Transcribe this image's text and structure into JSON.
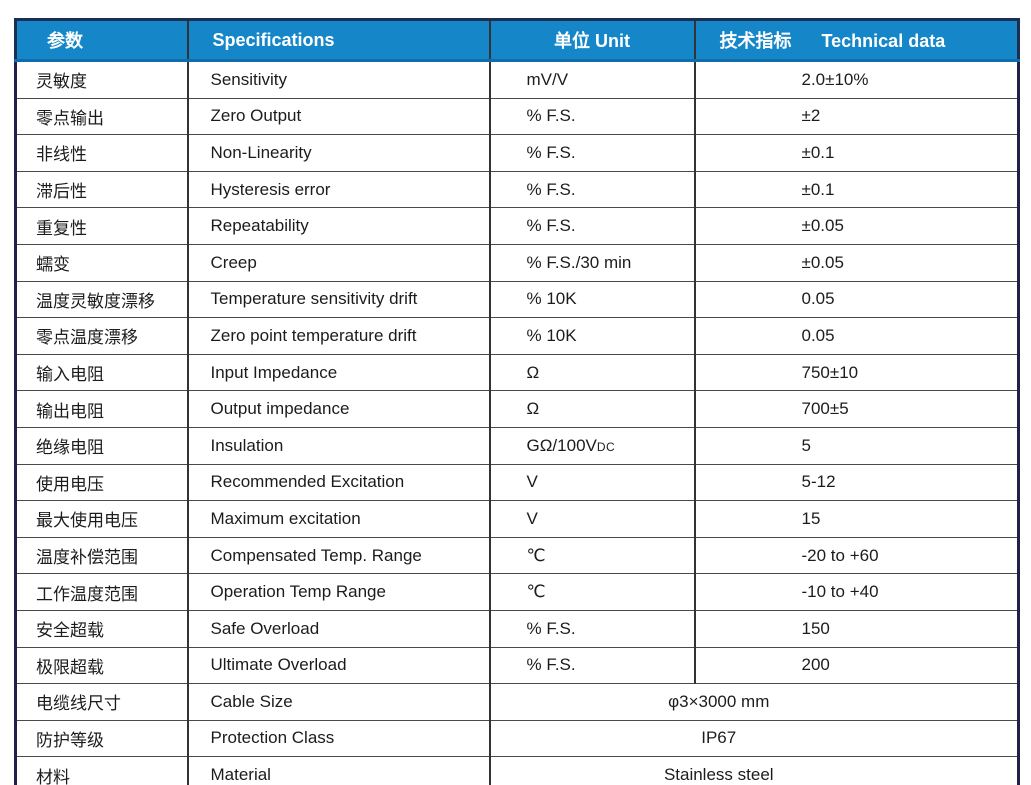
{
  "accent_color": "#1587C8",
  "grid_color": "#333333",
  "table": {
    "header": {
      "param": "参数",
      "specifications": "Specifications",
      "unit": "单位 Unit",
      "technical_cn": "技术指标",
      "technical_en": "Technical data"
    },
    "rows": [
      {
        "param": "灵敏度",
        "spec": "Sensitivity",
        "unit": "mV/V",
        "unit_suffix": "",
        "value": "2.0±10%",
        "merged": false
      },
      {
        "param": "零点输出",
        "spec": "Zero Output",
        "unit": "% F.S.",
        "unit_suffix": "",
        "value": "±2",
        "merged": false
      },
      {
        "param": "非线性",
        "spec": "Non-Linearity",
        "unit": "% F.S.",
        "unit_suffix": "",
        "value": "±0.1",
        "merged": false
      },
      {
        "param": "滞后性",
        "spec": "Hysteresis error",
        "unit": "% F.S.",
        "unit_suffix": "",
        "value": "±0.1",
        "merged": false
      },
      {
        "param": "重复性",
        "spec": "Repeatability",
        "unit": "% F.S.",
        "unit_suffix": "",
        "value": "±0.05",
        "merged": false
      },
      {
        "param": "蠕变",
        "spec": "Creep",
        "unit": "% F.S./30 min",
        "unit_suffix": "",
        "value": "±0.05",
        "merged": false
      },
      {
        "param": "温度灵敏度漂移",
        "spec": "Temperature sensitivity drift",
        "unit": "% 10K",
        "unit_suffix": "",
        "value": "0.05",
        "merged": false
      },
      {
        "param": "零点温度漂移",
        "spec": "Zero point temperature drift",
        "unit": "% 10K",
        "unit_suffix": "",
        "value": "0.05",
        "merged": false
      },
      {
        "param": "输入电阻",
        "spec": "Input Impedance",
        "unit": "Ω",
        "unit_suffix": "",
        "value": "750±10",
        "merged": false
      },
      {
        "param": "输出电阻",
        "spec": "Output impedance",
        "unit": "Ω",
        "unit_suffix": "",
        "value": "700±5",
        "merged": false
      },
      {
        "param": "绝缘电阻",
        "spec": "Insulation",
        "unit": "GΩ/100V",
        "unit_suffix": "DC",
        "value": "5",
        "merged": false
      },
      {
        "param": "使用电压",
        "spec": "Recommended Excitation",
        "unit": "V",
        "unit_suffix": "",
        "value": "5-12",
        "merged": false
      },
      {
        "param": "最大使用电压",
        "spec": "Maximum excitation",
        "unit": "V",
        "unit_suffix": "",
        "value": "15",
        "merged": false
      },
      {
        "param": "温度补偿范围",
        "spec": "Compensated Temp. Range",
        "unit": "℃",
        "unit_suffix": "",
        "value": "-20 to +60",
        "merged": false
      },
      {
        "param": "工作温度范围",
        "spec": "Operation Temp Range",
        "unit": "℃",
        "unit_suffix": "",
        "value": "-10 to +40",
        "merged": false
      },
      {
        "param": "安全超载",
        "spec": "Safe Overload",
        "unit": "% F.S.",
        "unit_suffix": "",
        "value": "150",
        "merged": false
      },
      {
        "param": "极限超载",
        "spec": "Ultimate Overload",
        "unit": "% F.S.",
        "unit_suffix": "",
        "value": "200",
        "merged": false
      },
      {
        "param": "电缆线尺寸",
        "spec": "Cable Size",
        "unit": "",
        "unit_suffix": "",
        "value": "φ3×3000 mm",
        "merged": true
      },
      {
        "param": "防护等级",
        "spec": "Protection Class",
        "unit": "",
        "unit_suffix": "",
        "value": "IP67",
        "merged": true
      },
      {
        "param": "材料",
        "spec": "Material",
        "unit": "",
        "unit_suffix": "",
        "value": "Stainless steel",
        "merged": true
      }
    ]
  }
}
